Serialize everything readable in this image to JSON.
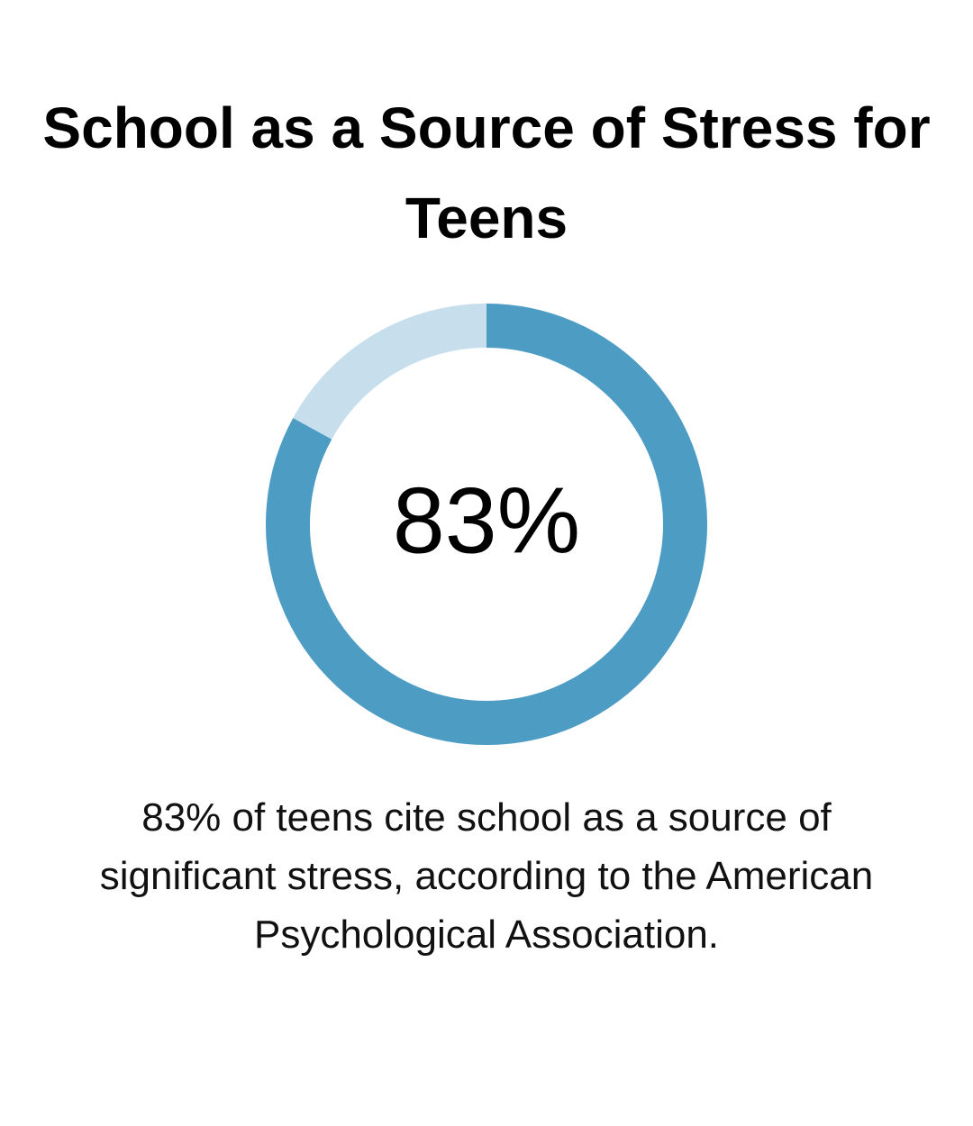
{
  "chart_data": {
    "type": "donut",
    "title": "School as a Source of Stress for Teens",
    "values": [
      83,
      17
    ],
    "value_labels": [
      "83%",
      null
    ],
    "colors": [
      "#4d9cc4",
      "#c7dfec"
    ],
    "caption": "83% of teens cite school as a source of significant stress, according to the American Psychological Association."
  }
}
